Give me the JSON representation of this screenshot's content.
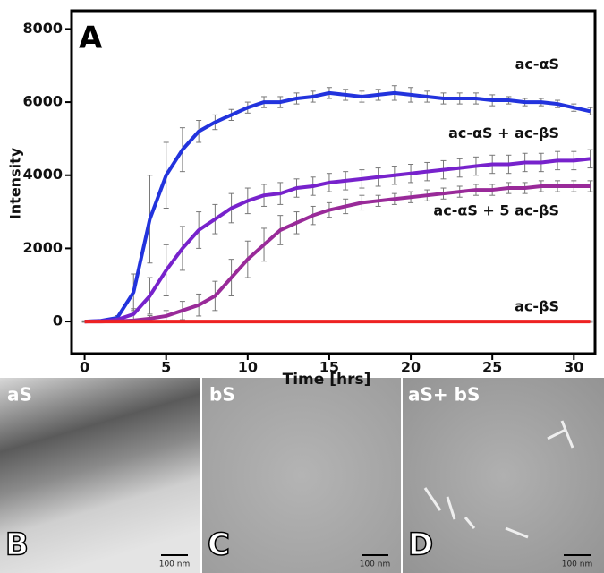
{
  "chart_data": {
    "type": "line",
    "panel": "A",
    "x_label": "Time [hrs]",
    "y_label": "Intensity",
    "x": [
      0,
      1,
      2,
      3,
      4,
      5,
      6,
      7,
      8,
      9,
      10,
      11,
      12,
      13,
      14,
      15,
      16,
      17,
      18,
      19,
      20,
      21,
      22,
      23,
      24,
      25,
      26,
      27,
      28,
      29,
      30,
      31
    ],
    "xlim": [
      -0.8,
      31.3
    ],
    "xticks": [
      0,
      5,
      10,
      15,
      20,
      25,
      30
    ],
    "ylim": [
      -880,
      8500
    ],
    "yticks": [
      0,
      2000,
      4000,
      6000,
      8000
    ],
    "grid": false,
    "series": [
      {
        "name": "ac-αS",
        "color": "#2233dd",
        "values": [
          0,
          20,
          100,
          800,
          2800,
          4000,
          4700,
          5200,
          5450,
          5650,
          5850,
          6000,
          6000,
          6100,
          6150,
          6250,
          6200,
          6150,
          6200,
          6250,
          6200,
          6150,
          6100,
          6100,
          6100,
          6050,
          6050,
          6000,
          6000,
          5950,
          5850,
          5750
        ],
        "errors": [
          0,
          10,
          60,
          500,
          1200,
          900,
          600,
          300,
          200,
          150,
          150,
          150,
          150,
          150,
          150,
          150,
          150,
          150,
          150,
          200,
          200,
          150,
          150,
          150,
          150,
          150,
          100,
          100,
          100,
          100,
          100,
          100
        ]
      },
      {
        "name": "ac-αS + ac-βS",
        "color": "#7722cc",
        "values": [
          0,
          10,
          50,
          200,
          700,
          1400,
          2000,
          2500,
          2800,
          3100,
          3300,
          3450,
          3500,
          3650,
          3700,
          3800,
          3850,
          3900,
          3950,
          4000,
          4050,
          4100,
          4150,
          4200,
          4250,
          4300,
          4300,
          4350,
          4350,
          4400,
          4400,
          4450
        ],
        "errors": [
          0,
          10,
          40,
          150,
          500,
          700,
          600,
          500,
          400,
          400,
          350,
          300,
          300,
          250,
          250,
          250,
          250,
          250,
          250,
          250,
          250,
          250,
          250,
          250,
          250,
          250,
          250,
          250,
          250,
          250,
          250,
          250
        ]
      },
      {
        "name": "ac-αS + 5 ac-βS",
        "color": "#992a99",
        "values": [
          0,
          0,
          10,
          30,
          80,
          150,
          300,
          450,
          700,
          1200,
          1700,
          2100,
          2500,
          2700,
          2900,
          3050,
          3150,
          3250,
          3300,
          3350,
          3400,
          3450,
          3500,
          3550,
          3600,
          3600,
          3650,
          3650,
          3700,
          3700,
          3700,
          3700
        ],
        "errors": [
          0,
          0,
          10,
          30,
          80,
          150,
          250,
          300,
          400,
          500,
          500,
          450,
          400,
          300,
          250,
          200,
          200,
          200,
          150,
          150,
          150,
          150,
          150,
          150,
          150,
          150,
          150,
          150,
          150,
          150,
          150,
          150
        ]
      },
      {
        "name": "ac-βS",
        "color": "#ee2222",
        "values": [
          0,
          0,
          0,
          0,
          0,
          0,
          0,
          0,
          0,
          0,
          0,
          0,
          0,
          0,
          0,
          0,
          0,
          0,
          0,
          0,
          0,
          0,
          0,
          0,
          0,
          0,
          0,
          0,
          0,
          0,
          0,
          0
        ],
        "errors": [
          20,
          20,
          20,
          20,
          20,
          20,
          20,
          20,
          20,
          20,
          20,
          20,
          20,
          20,
          20,
          20,
          20,
          20,
          20,
          20,
          20,
          20,
          20,
          20,
          20,
          20,
          20,
          20,
          20,
          20,
          20,
          20
        ]
      }
    ]
  },
  "panels": [
    {
      "title": "aS",
      "letter": "B",
      "scale": "100 nm"
    },
    {
      "title": "bS",
      "letter": "C",
      "scale": "100 nm"
    },
    {
      "title": "aS+ bS",
      "letter": "D",
      "scale": "100 nm"
    }
  ]
}
